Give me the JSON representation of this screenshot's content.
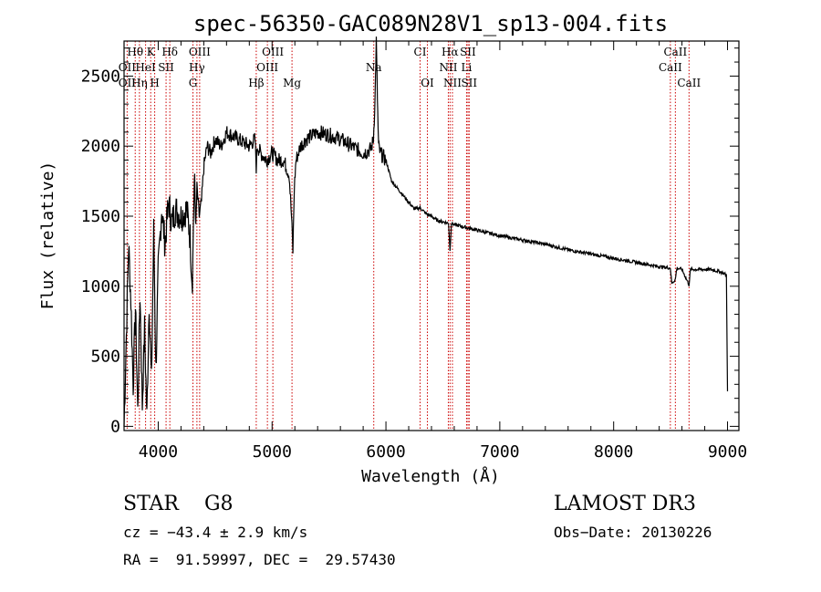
{
  "chart_data": {
    "type": "line",
    "title": "spec-56350-GAC089N28V1_sp13-004.fits",
    "xlabel": "Wavelength (Å)",
    "ylabel": "Flux (relative)",
    "xlim": [
      3700,
      9100
    ],
    "ylim": [
      -30,
      2750
    ],
    "x_ticks": [
      4000,
      5000,
      6000,
      7000,
      8000,
      9000
    ],
    "y_ticks": [
      0,
      500,
      1000,
      1500,
      2000,
      2500
    ],
    "grid": false,
    "series": [
      {
        "name": "spectrum",
        "x": [
          3700,
          3720,
          3740,
          3760,
          3780,
          3800,
          3820,
          3840,
          3860,
          3880,
          3900,
          3920,
          3940,
          3960,
          3980,
          4000,
          4030,
          4060,
          4090,
          4120,
          4150,
          4200,
          4250,
          4280,
          4300,
          4310,
          4320,
          4330,
          4340,
          4360,
          4380,
          4400,
          4430,
          4460,
          4500,
          4550,
          4600,
          4700,
          4800,
          4850,
          4861,
          4870,
          4900,
          4950,
          5000,
          5050,
          5100,
          5150,
          5170,
          5183,
          5195,
          5210,
          5250,
          5300,
          5400,
          5500,
          5600,
          5700,
          5800,
          5870,
          5890,
          5905,
          5915,
          5925,
          5935,
          5950,
          6000,
          6050,
          6100,
          6150,
          6200,
          6250,
          6300,
          6350,
          6400,
          6450,
          6500,
          6550,
          6563,
          6575,
          6600,
          6650,
          6700,
          6800,
          6900,
          7000,
          7200,
          7400,
          7600,
          7800,
          8000,
          8200,
          8400,
          8498,
          8510,
          8542,
          8555,
          8600,
          8662,
          8675,
          8750,
          8850,
          8950,
          8990,
          9000
        ],
        "y": [
          0,
          650,
          1300,
          900,
          300,
          850,
          100,
          950,
          150,
          700,
          60,
          900,
          300,
          1400,
          400,
          1100,
          1550,
          1300,
          1600,
          1450,
          1550,
          1500,
          1550,
          1350,
          1000,
          1500,
          1800,
          1400,
          1700,
          1500,
          1600,
          1850,
          2000,
          1950,
          2050,
          2000,
          2100,
          2050,
          2000,
          2050,
          1850,
          2000,
          1950,
          1900,
          1950,
          1900,
          1900,
          1800,
          1500,
          1250,
          1700,
          1900,
          2000,
          2050,
          2100,
          2080,
          2050,
          2000,
          1950,
          1980,
          2050,
          2350,
          2750,
          2350,
          2000,
          1950,
          1900,
          1750,
          1700,
          1650,
          1600,
          1550,
          1560,
          1520,
          1500,
          1470,
          1460,
          1450,
          1250,
          1450,
          1440,
          1430,
          1420,
          1400,
          1380,
          1360,
          1330,
          1300,
          1260,
          1230,
          1200,
          1170,
          1140,
          1130,
          1020,
          1050,
          1130,
          1120,
          1010,
          1120,
          1120,
          1120,
          1100,
          1080,
          250
        ]
      }
    ],
    "line_marks": [
      {
        "label": "Hθ",
        "x": 3798,
        "row": 1
      },
      {
        "label": "K",
        "x": 3934,
        "row": 1
      },
      {
        "label": "Hδ",
        "x": 4102,
        "row": 1
      },
      {
        "label": "OIII",
        "x": 4364,
        "row": 1
      },
      {
        "label": "OIII",
        "x": 5007,
        "row": 1
      },
      {
        "label": "CI",
        "x": 6300,
        "row": 1
      },
      {
        "label": "Hα",
        "x": 6563,
        "row": 1
      },
      {
        "label": "SII",
        "x": 6720,
        "row": 1
      },
      {
        "label": "CaII",
        "x": 8542,
        "row": 1
      },
      {
        "label": "OII",
        "x": 3727,
        "row": 2
      },
      {
        "label": "HeI",
        "x": 3889,
        "row": 2
      },
      {
        "label": "SII",
        "x": 4069,
        "row": 2
      },
      {
        "label": "Hγ",
        "x": 4340,
        "row": 2
      },
      {
        "label": "OIII",
        "x": 4959,
        "row": 2
      },
      {
        "label": "Na",
        "x": 5893,
        "row": 2
      },
      {
        "label": "NII",
        "x": 6548,
        "row": 2
      },
      {
        "label": "Li",
        "x": 6708,
        "row": 2
      },
      {
        "label": "CaII",
        "x": 8498,
        "row": 2
      },
      {
        "label": "OII",
        "x": 3727,
        "row": 3
      },
      {
        "label": "Hη",
        "x": 3835,
        "row": 3
      },
      {
        "label": "H",
        "x": 3969,
        "row": 3
      },
      {
        "label": "G",
        "x": 4305,
        "row": 3
      },
      {
        "label": "Hβ",
        "x": 4861,
        "row": 3
      },
      {
        "label": "Mg",
        "x": 5175,
        "row": 3
      },
      {
        "label": "OI",
        "x": 6364,
        "row": 3
      },
      {
        "label": "NII",
        "x": 6584,
        "row": 3
      },
      {
        "label": "SII",
        "x": 6731,
        "row": 3
      },
      {
        "label": "CaII",
        "x": 8662,
        "row": 3
      }
    ]
  },
  "info": {
    "class_line": "STAR    G8",
    "survey": "LAMOST DR3",
    "cz": "cz = −43.4 ± 2.9 km/s",
    "obs_date": "Obs−Date: 20130226",
    "radec": "RA =  91.59997, DEC =  29.57430"
  },
  "colors": {
    "line_marker": "#cc0000",
    "spectrum": "#000000",
    "axis": "#000000"
  }
}
